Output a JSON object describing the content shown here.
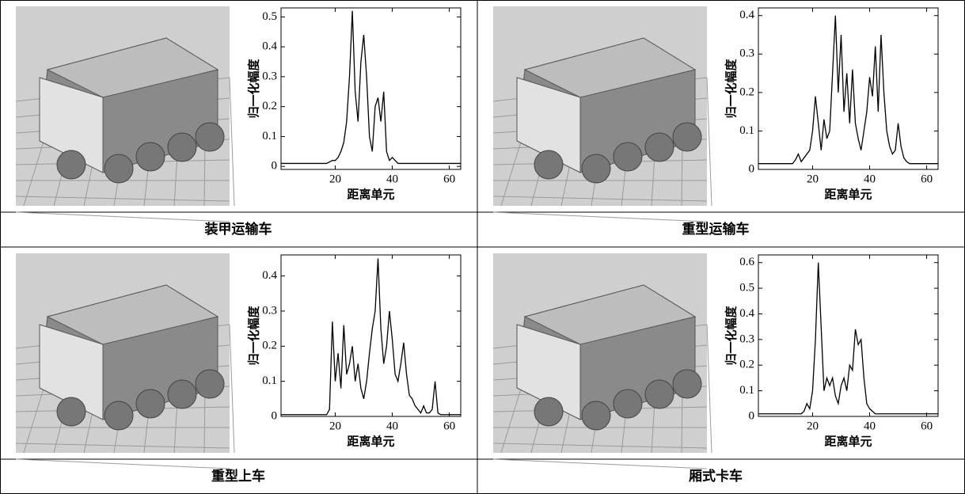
{
  "chart_data": [
    {
      "type": "line",
      "title": "装甲运输车",
      "xlabel": "距离单元",
      "ylabel": "归一化幅度",
      "color": "#000000",
      "x": [
        1,
        2,
        3,
        4,
        5,
        6,
        7,
        8,
        9,
        10,
        11,
        12,
        13,
        14,
        15,
        16,
        17,
        18,
        19,
        20,
        21,
        22,
        23,
        24,
        25,
        26,
        27,
        28,
        29,
        30,
        31,
        32,
        33,
        34,
        35,
        36,
        37,
        38,
        39,
        40,
        41,
        42,
        43,
        44,
        45,
        46,
        47,
        48,
        49,
        50,
        51,
        52,
        53,
        54,
        55,
        56,
        57,
        58,
        59,
        60,
        61,
        62,
        63,
        64
      ],
      "values": [
        0.01,
        0.01,
        0.01,
        0.01,
        0.01,
        0.01,
        0.01,
        0.01,
        0.01,
        0.01,
        0.01,
        0.01,
        0.01,
        0.01,
        0.01,
        0.01,
        0.01,
        0.015,
        0.02,
        0.02,
        0.03,
        0.05,
        0.08,
        0.15,
        0.3,
        0.52,
        0.25,
        0.15,
        0.35,
        0.44,
        0.3,
        0.1,
        0.05,
        0.2,
        0.23,
        0.15,
        0.25,
        0.05,
        0.02,
        0.03,
        0.02,
        0.01,
        0.01,
        0.01,
        0.01,
        0.01,
        0.01,
        0.01,
        0.01,
        0.01,
        0.01,
        0.01,
        0.01,
        0.01,
        0.01,
        0.01,
        0.01,
        0.01,
        0.01,
        0.01,
        0.01,
        0.01,
        0.01,
        0.01
      ],
      "xlim": [
        1,
        64
      ],
      "xticks": [
        20,
        40,
        60
      ],
      "ylim": [
        -0.01,
        0.53
      ],
      "yticks": [
        0,
        0.1,
        0.2,
        0.3,
        0.4,
        0.5
      ]
    },
    {
      "type": "line",
      "title": "重型运输车",
      "xlabel": "距离单元",
      "ylabel": "归一化幅度",
      "color": "#000000",
      "x": [
        1,
        2,
        3,
        4,
        5,
        6,
        7,
        8,
        9,
        10,
        11,
        12,
        13,
        14,
        15,
        16,
        17,
        18,
        19,
        20,
        21,
        22,
        23,
        24,
        25,
        26,
        27,
        28,
        29,
        30,
        31,
        32,
        33,
        34,
        35,
        36,
        37,
        38,
        39,
        40,
        41,
        42,
        43,
        44,
        45,
        46,
        47,
        48,
        49,
        50,
        51,
        52,
        53,
        54,
        55,
        56,
        57,
        58,
        59,
        60,
        61,
        62,
        63,
        64
      ],
      "values": [
        0.015,
        0.015,
        0.015,
        0.015,
        0.015,
        0.015,
        0.015,
        0.015,
        0.015,
        0.015,
        0.015,
        0.015,
        0.015,
        0.025,
        0.04,
        0.02,
        0.03,
        0.04,
        0.05,
        0.1,
        0.19,
        0.12,
        0.05,
        0.13,
        0.08,
        0.1,
        0.25,
        0.4,
        0.2,
        0.35,
        0.15,
        0.25,
        0.12,
        0.26,
        0.12,
        0.08,
        0.05,
        0.1,
        0.15,
        0.24,
        0.19,
        0.32,
        0.15,
        0.35,
        0.2,
        0.1,
        0.06,
        0.04,
        0.05,
        0.12,
        0.06,
        0.03,
        0.02,
        0.015,
        0.015,
        0.015,
        0.015,
        0.015,
        0.015,
        0.015,
        0.015,
        0.015,
        0.015,
        0.015
      ],
      "xlim": [
        1,
        64
      ],
      "xticks": [
        20,
        40,
        60
      ],
      "ylim": [
        0,
        0.42
      ],
      "yticks": [
        0,
        0.1,
        0.2,
        0.3,
        0.4
      ]
    },
    {
      "type": "line",
      "title": "重型上车",
      "xlabel": "距离单元",
      "ylabel": "归一化幅度",
      "color": "#000000",
      "x": [
        1,
        2,
        3,
        4,
        5,
        6,
        7,
        8,
        9,
        10,
        11,
        12,
        13,
        14,
        15,
        16,
        17,
        18,
        19,
        20,
        21,
        22,
        23,
        24,
        25,
        26,
        27,
        28,
        29,
        30,
        31,
        32,
        33,
        34,
        35,
        36,
        37,
        38,
        39,
        40,
        41,
        42,
        43,
        44,
        45,
        46,
        47,
        48,
        49,
        50,
        51,
        52,
        53,
        54,
        55,
        56,
        57,
        58,
        59,
        60,
        61,
        62,
        63,
        64
      ],
      "values": [
        0.005,
        0.005,
        0.005,
        0.005,
        0.005,
        0.005,
        0.005,
        0.005,
        0.005,
        0.005,
        0.005,
        0.005,
        0.005,
        0.005,
        0.005,
        0.005,
        0.005,
        0.02,
        0.27,
        0.1,
        0.18,
        0.08,
        0.26,
        0.12,
        0.15,
        0.2,
        0.1,
        0.15,
        0.08,
        0.05,
        0.1,
        0.18,
        0.25,
        0.3,
        0.45,
        0.25,
        0.15,
        0.2,
        0.3,
        0.22,
        0.12,
        0.1,
        0.15,
        0.21,
        0.12,
        0.06,
        0.05,
        0.03,
        0.02,
        0.01,
        0.03,
        0.01,
        0.01,
        0.02,
        0.1,
        0.01,
        0.005,
        0.005,
        0.005,
        0.005,
        0.005,
        0.005,
        0.005,
        0.005
      ],
      "xlim": [
        1,
        64
      ],
      "xticks": [
        20,
        40,
        60
      ],
      "ylim": [
        0,
        0.46
      ],
      "yticks": [
        0,
        0.1,
        0.2,
        0.3,
        0.4
      ]
    },
    {
      "type": "line",
      "title": "厢式卡车",
      "xlabel": "距离单元",
      "ylabel": "归一化幅度",
      "color": "#000000",
      "x": [
        1,
        2,
        3,
        4,
        5,
        6,
        7,
        8,
        9,
        10,
        11,
        12,
        13,
        14,
        15,
        16,
        17,
        18,
        19,
        20,
        21,
        22,
        23,
        24,
        25,
        26,
        27,
        28,
        29,
        30,
        31,
        32,
        33,
        34,
        35,
        36,
        37,
        38,
        39,
        40,
        41,
        42,
        43,
        44,
        45,
        46,
        47,
        48,
        49,
        50,
        51,
        52,
        53,
        54,
        55,
        56,
        57,
        58,
        59,
        60,
        61,
        62,
        63,
        64
      ],
      "values": [
        0.01,
        0.01,
        0.01,
        0.01,
        0.01,
        0.01,
        0.01,
        0.01,
        0.01,
        0.01,
        0.01,
        0.01,
        0.01,
        0.01,
        0.01,
        0.01,
        0.02,
        0.05,
        0.03,
        0.1,
        0.3,
        0.6,
        0.35,
        0.1,
        0.15,
        0.12,
        0.15,
        0.08,
        0.05,
        0.12,
        0.15,
        0.1,
        0.2,
        0.18,
        0.34,
        0.28,
        0.3,
        0.15,
        0.05,
        0.03,
        0.02,
        0.01,
        0.01,
        0.01,
        0.01,
        0.01,
        0.01,
        0.01,
        0.01,
        0.01,
        0.01,
        0.01,
        0.01,
        0.01,
        0.01,
        0.01,
        0.01,
        0.01,
        0.01,
        0.01,
        0.01,
        0.01,
        0.01,
        0.01
      ],
      "xlim": [
        1,
        64
      ],
      "xticks": [
        20,
        40,
        60
      ],
      "ylim": [
        0,
        0.63
      ],
      "yticks": [
        0,
        0.1,
        0.2,
        0.3,
        0.4,
        0.5,
        0.6
      ]
    }
  ]
}
